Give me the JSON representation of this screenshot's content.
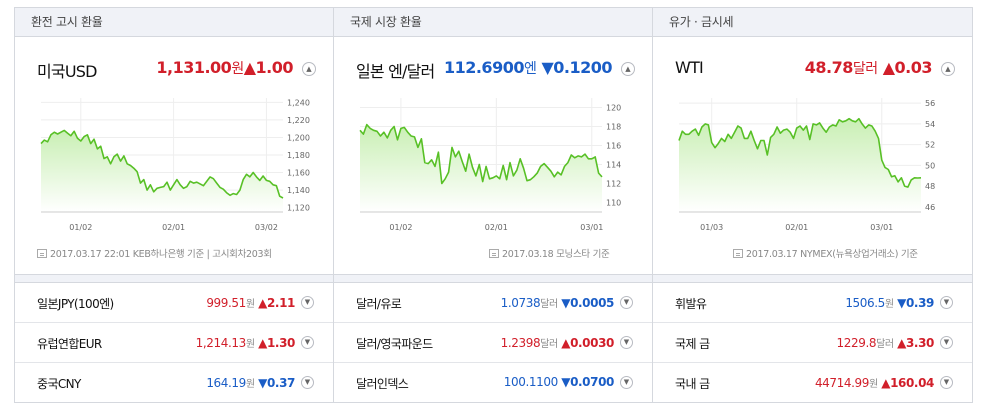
{
  "panels": [
    {
      "title": "환전 고시 환율",
      "main": {
        "name": "미국USD",
        "value": "1,131.00",
        "unit": "원",
        "arrow": "▲",
        "change": "1.00",
        "dir": "up"
      },
      "source": "2017.03.17 22:01 KEB하나은행 기준 | 고시회차203회",
      "toggle_icon": "chevron-up-icon",
      "rows": [
        {
          "name": "일본JPY(100엔)",
          "value": "999.51",
          "unit": "원",
          "arrow": "▲",
          "change": "2.11",
          "dir": "up"
        },
        {
          "name": "유럽연합EUR",
          "value": "1,214.13",
          "unit": "원",
          "arrow": "▲",
          "change": "1.30",
          "dir": "up"
        },
        {
          "name": "중국CNY",
          "value": "164.19",
          "unit": "원",
          "arrow": "▼",
          "change": "0.37",
          "dir": "down"
        }
      ]
    },
    {
      "title": "국제 시장 환율",
      "main": {
        "name": "일본 엔/달러",
        "value": "112.6900",
        "unit": "엔",
        "arrow": "▼",
        "change": "0.1200",
        "dir": "down"
      },
      "source": "2017.03.18 모닝스타 기준",
      "toggle_icon": "chevron-up-icon",
      "rows": [
        {
          "name": "달러/유로",
          "value": "1.0738",
          "unit": "달러",
          "arrow": "▼",
          "change": "0.0005",
          "dir": "down"
        },
        {
          "name": "달러/영국파운드",
          "value": "1.2398",
          "unit": "달러",
          "arrow": "▲",
          "change": "0.0030",
          "dir": "up"
        },
        {
          "name": "달러인덱스",
          "value": "100.1100",
          "unit": "",
          "arrow": "▼",
          "change": "0.0700",
          "dir": "down"
        }
      ]
    },
    {
      "title": "유가 · 금시세",
      "main": {
        "name": "WTI",
        "value": "48.78",
        "unit": "달러",
        "arrow": "▲",
        "change": "0.03",
        "dir": "up"
      },
      "source": "2017.03.17 NYMEX(뉴욕상업거래소) 기준",
      "toggle_icon": "chevron-up-icon",
      "rows": [
        {
          "name": "휘발유",
          "value": "1506.5",
          "unit": "원",
          "arrow": "▼",
          "change": "0.39",
          "dir": "down"
        },
        {
          "name": "국제 금",
          "value": "1229.8",
          "unit": "달러",
          "arrow": "▲",
          "change": "3.30",
          "dir": "up"
        },
        {
          "name": "국내 금",
          "value": "44714.99",
          "unit": "원",
          "arrow": "▲",
          "change": "160.04",
          "dir": "up"
        }
      ]
    }
  ],
  "chart_data": [
    {
      "type": "area",
      "xticks": [
        "01/02",
        "02/01",
        "03/02"
      ],
      "xtick_index": [
        12,
        40,
        68
      ],
      "yticks": [
        1120,
        1140,
        1160,
        1180,
        1200,
        1220,
        1240
      ],
      "ylim": [
        1115,
        1245
      ],
      "color": "#58c026",
      "values": [
        1193,
        1197,
        1195,
        1203,
        1206,
        1204,
        1206,
        1208,
        1205,
        1202,
        1207,
        1199,
        1196,
        1201,
        1203,
        1193,
        1198,
        1187,
        1190,
        1176,
        1178,
        1170,
        1178,
        1181,
        1173,
        1179,
        1170,
        1168,
        1165,
        1161,
        1148,
        1152,
        1140,
        1146,
        1138,
        1142,
        1143,
        1144,
        1149,
        1140,
        1146,
        1152,
        1146,
        1142,
        1144,
        1150,
        1148,
        1149,
        1147,
        1145,
        1150,
        1155,
        1153,
        1148,
        1143,
        1141,
        1137,
        1134,
        1136,
        1135,
        1140,
        1152,
        1158,
        1155,
        1160,
        1155,
        1151,
        1156,
        1151,
        1150,
        1146,
        1145,
        1133,
        1131
      ]
    },
    {
      "type": "area",
      "xticks": [
        "01/02",
        "02/01",
        "03/01"
      ],
      "xtick_index": [
        12,
        40,
        68
      ],
      "yticks": [
        110,
        112,
        114,
        116,
        118,
        120
      ],
      "ylim": [
        109,
        121
      ],
      "color": "#58c026",
      "values": [
        117.6,
        117.2,
        118.2,
        117.8,
        117.6,
        117.5,
        117.0,
        117.4,
        116.8,
        117.6,
        118.0,
        116.6,
        117.8,
        117.9,
        117.4,
        117.0,
        116.9,
        115.8,
        116.7,
        114.2,
        114.1,
        114.5,
        113.8,
        115.3,
        112.0,
        112.5,
        113.2,
        115.8,
        114.8,
        115.4,
        114.3,
        113.3,
        115.1,
        113.7,
        112.8,
        114.0,
        112.2,
        113.8,
        112.5,
        112.6,
        112.8,
        112.5,
        113.9,
        112.4,
        114.2,
        112.8,
        113.4,
        114.6,
        113.6,
        112.3,
        112.4,
        112.7,
        113.1,
        113.8,
        114.1,
        113.7,
        113.3,
        112.7,
        113.2,
        112.9,
        113.8,
        114.2,
        115.0,
        114.7,
        114.9,
        114.8,
        115.1,
        114.6,
        114.6,
        114.8,
        113.1,
        112.69
      ]
    },
    {
      "type": "area",
      "xticks": [
        "01/03",
        "02/01",
        "03/01"
      ],
      "xtick_index": [
        10,
        36,
        62
      ],
      "yticks": [
        46,
        48,
        50,
        52,
        54,
        56
      ],
      "ylim": [
        45.5,
        56.5
      ],
      "color": "#58c026",
      "values": [
        52.4,
        53.3,
        53.0,
        53.0,
        53.3,
        53.5,
        52.9,
        53.7,
        54.0,
        53.9,
        52.2,
        51.7,
        52.1,
        52.6,
        52.3,
        53.0,
        52.6,
        53.2,
        53.8,
        53.6,
        52.6,
        52.6,
        53.3,
        52.4,
        51.6,
        52.4,
        52.4,
        51.0,
        52.7,
        53.0,
        53.7,
        53.1,
        53.4,
        53.5,
        53.2,
        52.6,
        53.6,
        53.8,
        53.4,
        53.8,
        52.5,
        54.0,
        53.9,
        54.1,
        53.6,
        53.2,
        53.7,
        53.9,
        53.8,
        54.4,
        54.2,
        54.3,
        54.5,
        54.3,
        54.2,
        54.5,
        54.0,
        53.6,
        53.9,
        53.8,
        53.3,
        52.6,
        50.5,
        49.8,
        49.6,
        48.9,
        49.0,
        48.4,
        48.8,
        48.0,
        47.9,
        48.6,
        48.8,
        48.78,
        48.8
      ]
    }
  ]
}
